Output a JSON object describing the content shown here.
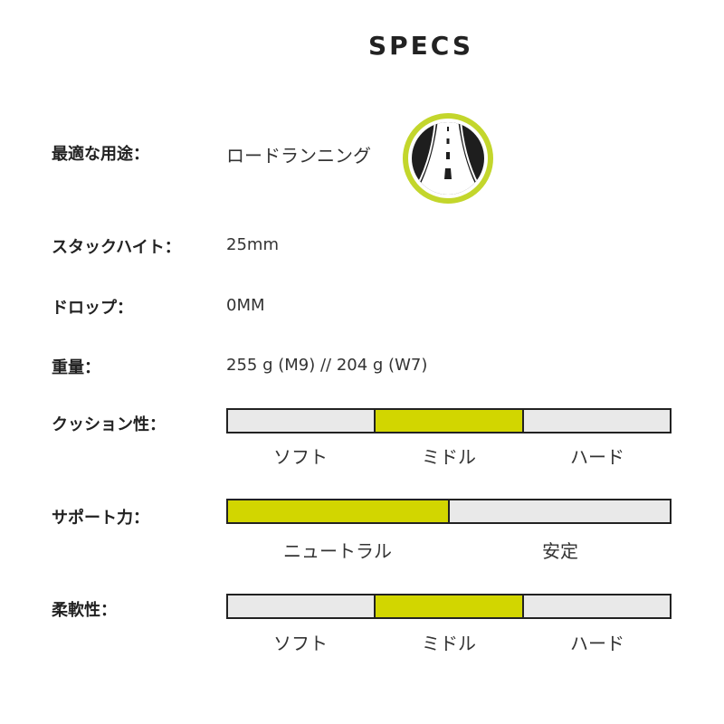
{
  "title": "SPECS",
  "colors": {
    "accent": "#d2d600",
    "inactive": "#e9e9e9",
    "border": "#222222"
  },
  "specs": {
    "usage": {
      "label": "最適な用途：",
      "value": "ロードランニング",
      "icon": "road-icon"
    },
    "stack": {
      "label": "スタックハイト：",
      "value": "25mm"
    },
    "drop": {
      "label": "ドロップ：",
      "value": "0MM"
    },
    "weight": {
      "label": "重量：",
      "value": "255 g (M9) // 204 g (W7)"
    },
    "cushion": {
      "label": "クッション性：",
      "scale": [
        "ソフト",
        "ミドル",
        "ハード"
      ],
      "selected": "ミドル"
    },
    "support": {
      "label": "サポート力：",
      "scale": [
        "ニュートラル",
        "安定"
      ],
      "selected": "ニュートラル"
    },
    "flex": {
      "label": "柔軟性：",
      "scale": [
        "ソフト",
        "ミドル",
        "ハード"
      ],
      "selected": "ミドル"
    }
  }
}
